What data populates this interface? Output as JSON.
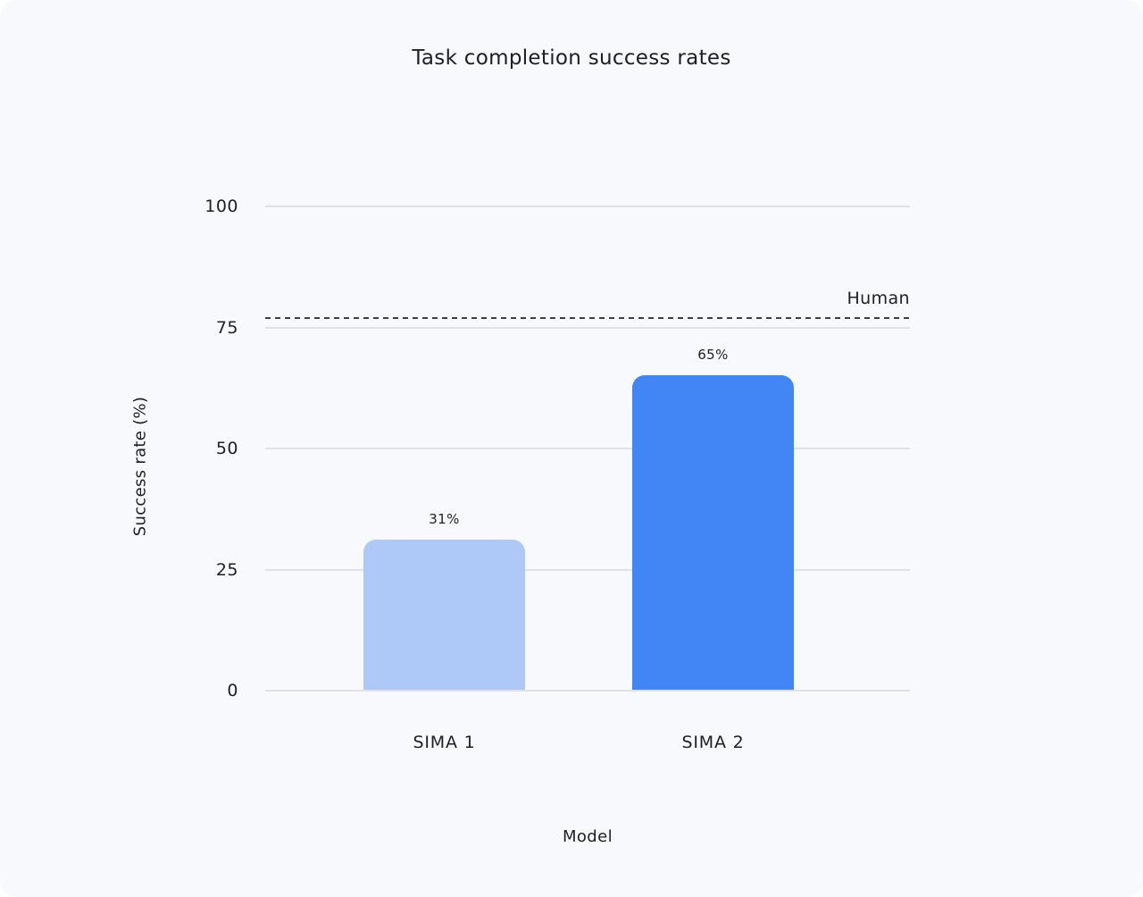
{
  "page": {
    "background_color": "#F8F9FC",
    "outer_background_color": "#FFFFFF"
  },
  "chart_data": {
    "type": "bar",
    "title": "Task completion success rates",
    "xlabel": "Model",
    "ylabel": "Success rate (%)",
    "categories": [
      "SIMA 1",
      "SIMA 2"
    ],
    "values": [
      31,
      65
    ],
    "value_labels": [
      "31%",
      "65%"
    ],
    "bar_colors": [
      "#AEC9F7",
      "#4285F4"
    ],
    "yticks": [
      0,
      25,
      50,
      75,
      100
    ],
    "ytick_labels": [
      "0",
      "25",
      "50",
      "75",
      "100"
    ],
    "ylim": [
      0,
      100
    ],
    "grid": true,
    "gridline_color": "#DFE1E6",
    "legend": "none",
    "reference_line": {
      "label": "Human",
      "value": 77,
      "style": "dashed",
      "color": "#3C4043"
    }
  }
}
